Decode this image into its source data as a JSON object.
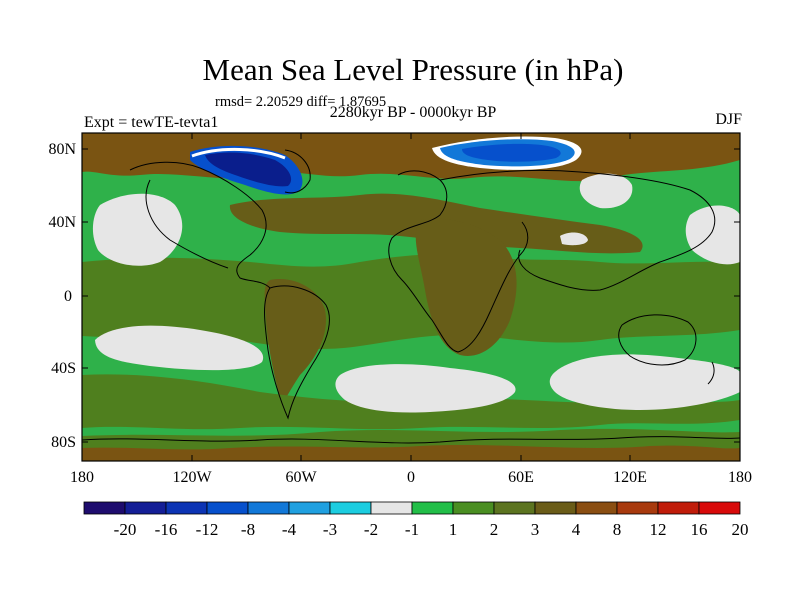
{
  "title": "Mean Sea Level Pressure (in hPa)",
  "stats": "rmsd= 2.20529 diff= 1.87695",
  "left_label": "Expt = tewTE-tevta1",
  "center_label": "2280kyr BP - 0000kyr BP",
  "right_label": "DJF",
  "lat_labels": [
    "80N",
    "40N",
    "0",
    "40S",
    "80S"
  ],
  "lon_labels": [
    "180",
    "120W",
    "60W",
    "0",
    "60E",
    "120E",
    "180"
  ],
  "colors": {
    "background_green": "#2fb14a",
    "olive": "#4f7f1e",
    "dark_olive": "#675d18",
    "brown": "#7a5412",
    "light_gray": "#e6e6e6",
    "blue": "#0055cc",
    "dark_blue": "#0a1e8c",
    "light_blue": "#40a8e0"
  },
  "colorbar": {
    "colors": [
      "#1e0c6e",
      "#141e96",
      "#0c34b4",
      "#0650cc",
      "#1278d8",
      "#20a0e0",
      "#1ccde0",
      "#e6e6e6",
      "#22be48",
      "#4a8e22",
      "#5c7420",
      "#6a5c18",
      "#8a4e12",
      "#a83a0e",
      "#c01c0a",
      "#d80a0a"
    ],
    "labels": [
      "-20",
      "-16",
      "-12",
      "-8",
      "-4",
      "-3",
      "-2",
      "-1",
      "1",
      "2",
      "3",
      "4",
      "8",
      "12",
      "16",
      "20"
    ]
  }
}
